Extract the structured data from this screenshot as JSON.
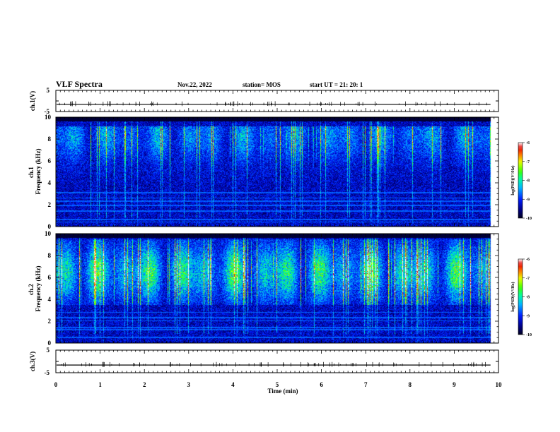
{
  "header": {
    "title": "VLF Spectra",
    "date": "Nov.22, 2022",
    "station": "station= MOS",
    "start": "start  UT  =   21: 20: 1"
  },
  "chart_data": [
    {
      "type": "line",
      "panel": "ch1_waveform",
      "ylabel": "ch.1(V)",
      "ylim": [
        -5,
        5
      ],
      "yticks": [
        "5",
        "-5"
      ],
      "xlim": [
        0,
        10
      ],
      "baseline_value": -1.6,
      "color": "#000000"
    },
    {
      "type": "heatmap",
      "panel": "ch1_spectrogram",
      "ylabel": "ch.1\nFrequency (kHz)",
      "ylabel_lines": [
        "ch.1",
        "Frequency (kHz)"
      ],
      "ylim": [
        0,
        10
      ],
      "yticks": [
        "0",
        "2",
        "4",
        "6",
        "8",
        "10"
      ],
      "xlim": [
        0,
        10
      ],
      "data_end_min": 9.82,
      "colorbar": {
        "label": "log(PSD)(V²/Hz)",
        "ticks": [
          "-6",
          "-7",
          "-8",
          "-9",
          "-10"
        ],
        "range": [
          -10,
          -6
        ]
      },
      "band_khz": [
        4.0,
        9.2
      ],
      "peak_khz": 8.3,
      "background_level": -9.3,
      "band_level": -8.3,
      "lines_khz": [
        0.4,
        0.6,
        1.4,
        1.9,
        2.3,
        2.6,
        3.1
      ]
    },
    {
      "type": "heatmap",
      "panel": "ch2_spectrogram",
      "ylabel": "ch.2\nFrequency (kHz)",
      "ylabel_lines": [
        "ch.2",
        "Frequency (kHz)"
      ],
      "ylim": [
        0,
        10
      ],
      "yticks": [
        "0",
        "2",
        "4",
        "6",
        "8",
        "10"
      ],
      "xlim": [
        0,
        10
      ],
      "data_end_min": 9.82,
      "colorbar": {
        "label": "log(PSD)(V²/Hz)",
        "ticks": [
          "-6",
          "-7",
          "-8",
          "-9",
          "-10"
        ],
        "range": [
          -10,
          -6
        ]
      },
      "band_khz": [
        3.5,
        9.5
      ],
      "peak_khz": 6.5,
      "background_level": -9.3,
      "band_level": -7.6,
      "lines_khz": [
        0.5,
        1.2,
        1.4,
        2.0,
        2.3,
        2.8
      ]
    },
    {
      "type": "line",
      "panel": "ch3_waveform",
      "ylabel": "ch.3(V)",
      "ylim": [
        -5,
        5
      ],
      "yticks": [
        "5",
        "-5"
      ],
      "xlim": [
        0,
        10
      ],
      "baseline_value": -1.6,
      "color": "#000000"
    }
  ],
  "x_axis": {
    "label": "Time  (min)",
    "ticks": [
      "0",
      "1",
      "2",
      "3",
      "4",
      "5",
      "6",
      "7",
      "8",
      "9",
      "10"
    ]
  }
}
